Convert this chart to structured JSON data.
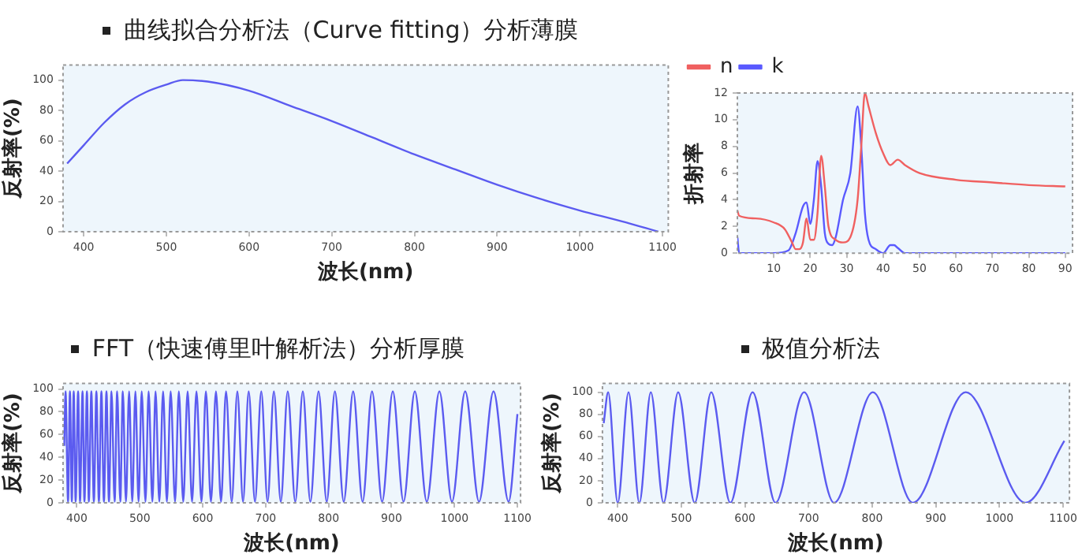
{
  "chart_data": [
    {
      "type": "line",
      "title": "曲线拟合分析法（Curve fitting）分析薄膜",
      "xlabel": "波长(nm)",
      "ylabel": "反射率(%)",
      "x": [
        380,
        400,
        425,
        450,
        475,
        500,
        520,
        550,
        600,
        650,
        700,
        750,
        800,
        850,
        900,
        950,
        1000,
        1050,
        1095
      ],
      "series": [
        {
          "color": "#5b5bf0",
          "values": [
            45,
            57,
            72,
            84,
            92,
            97,
            100,
            99,
            93,
            83,
            73,
            62,
            51,
            41,
            31,
            22,
            14,
            7,
            0
          ]
        }
      ],
      "xlim": [
        375,
        1107
      ],
      "ylim": [
        0,
        110
      ],
      "xticks": [
        400,
        500,
        600,
        700,
        800,
        900,
        1000,
        1100
      ],
      "yticks": [
        0,
        20,
        40,
        60,
        80,
        100
      ]
    },
    {
      "type": "line",
      "ylabel": "折射率",
      "legend": "top left",
      "series": [
        {
          "name": "n",
          "color": "#f06060",
          "x": [
            0,
            0.5,
            5,
            10,
            13,
            15,
            16,
            17,
            18,
            19,
            20,
            21,
            22,
            23,
            24,
            25,
            27,
            29,
            31,
            33,
            34,
            35,
            36,
            38,
            40,
            42,
            44,
            46,
            50,
            60,
            70,
            80,
            90
          ],
          "values": [
            3.2,
            2.8,
            2.6,
            2.3,
            1.8,
            0.8,
            0.3,
            0.3,
            0.8,
            2.6,
            1.0,
            1.0,
            3.0,
            7.3,
            5.0,
            2.0,
            1.0,
            0.8,
            1.2,
            4.0,
            8.0,
            12.0,
            11.0,
            9.0,
            7.5,
            6.6,
            7.0,
            6.6,
            6.0,
            5.5,
            5.3,
            5.1,
            5.0
          ]
        },
        {
          "name": "k",
          "color": "#5a5aff",
          "x": [
            0,
            0.5,
            10,
            14,
            16,
            18,
            19,
            20,
            21,
            22,
            23,
            24,
            25,
            26,
            27,
            29,
            31,
            33,
            34,
            35,
            36,
            38,
            40,
            42,
            43,
            44,
            46,
            50,
            90
          ],
          "values": [
            1.2,
            0,
            0,
            0.2,
            1.5,
            3.5,
            3.8,
            2.2,
            4.0,
            6.9,
            5.0,
            1.5,
            0.7,
            0.6,
            1.2,
            4.0,
            6.0,
            11.0,
            8.0,
            3.0,
            1.0,
            0.3,
            0,
            0.6,
            0.6,
            0.4,
            0,
            0,
            0
          ]
        }
      ],
      "xlim": [
        0,
        92
      ],
      "ylim": [
        0,
        12
      ],
      "xticks": [
        10,
        20,
        30,
        40,
        50,
        60,
        70,
        80,
        90
      ],
      "yticks": [
        0,
        2,
        4,
        6,
        8,
        10,
        12
      ]
    },
    {
      "type": "line",
      "title": "FFT（快速傅里叶解析法）分析厚膜",
      "xlabel": "波长(nm)",
      "ylabel": "反射率(%)",
      "x": [
        380,
        382,
        386,
        389,
        392,
        395,
        398,
        402,
        405,
        409,
        412,
        416,
        419,
        423,
        427,
        431,
        435,
        439,
        443,
        447,
        451,
        455,
        460,
        464,
        469,
        473,
        478,
        483,
        488,
        493,
        498,
        503,
        509,
        514,
        520,
        525,
        531,
        537,
        543,
        549,
        556,
        562,
        569,
        576,
        583,
        590,
        598,
        605,
        613,
        621,
        629,
        637,
        646,
        655,
        664,
        673,
        683,
        693,
        703,
        713,
        724,
        735,
        747,
        759,
        771,
        784,
        797,
        810,
        824,
        839,
        854,
        869,
        885,
        902,
        919,
        937,
        956,
        976,
        996,
        1017,
        1039,
        1062,
        1086,
        1100
      ],
      "series": [
        {
          "color": "#5b5bf0",
          "values": [
            50,
            98,
            1,
            98,
            1,
            98,
            1,
            98,
            1,
            98,
            1,
            98,
            1,
            98,
            1,
            98,
            1,
            98,
            1,
            98,
            1,
            98,
            1,
            98,
            1,
            98,
            1,
            98,
            1,
            98,
            1,
            98,
            1,
            98,
            1,
            98,
            1,
            98,
            1,
            98,
            1,
            98,
            1,
            98,
            1,
            98,
            1,
            98,
            1,
            98,
            1,
            98,
            1,
            98,
            1,
            98,
            1,
            98,
            1,
            98,
            1,
            98,
            1,
            98,
            1,
            98,
            1,
            98,
            1,
            98,
            1,
            98,
            1,
            98,
            1,
            98,
            1,
            98,
            1,
            98,
            1,
            98,
            1,
            78
          ]
        }
      ],
      "xlim": [
        378,
        1105
      ],
      "ylim": [
        0,
        105
      ],
      "xticks": [
        400,
        500,
        600,
        700,
        800,
        900,
        1000,
        1100
      ],
      "yticks": [
        0,
        20,
        40,
        60,
        80,
        100
      ]
    },
    {
      "type": "line",
      "title": "极值分析法",
      "xlabel": "波长(nm)",
      "ylabel": "反射率(%)",
      "x": [
        378,
        385,
        400,
        417,
        434,
        452,
        472,
        495,
        521,
        547,
        577,
        612,
        648,
        693,
        740,
        801,
        864,
        947,
        1041,
        1102
      ],
      "series": [
        {
          "color": "#5b5bf0",
          "values": [
            72,
            100,
            0,
            100,
            0,
            100,
            0,
            100,
            0,
            100,
            0,
            100,
            0,
            100,
            0,
            100,
            0,
            100,
            0,
            56
          ]
        }
      ],
      "xlim": [
        376,
        1110
      ],
      "ylim": [
        0,
        108
      ],
      "xticks": [
        400,
        500,
        600,
        700,
        800,
        900,
        1000,
        1100
      ],
      "yticks": [
        0,
        20,
        40,
        60,
        80,
        100
      ]
    }
  ]
}
